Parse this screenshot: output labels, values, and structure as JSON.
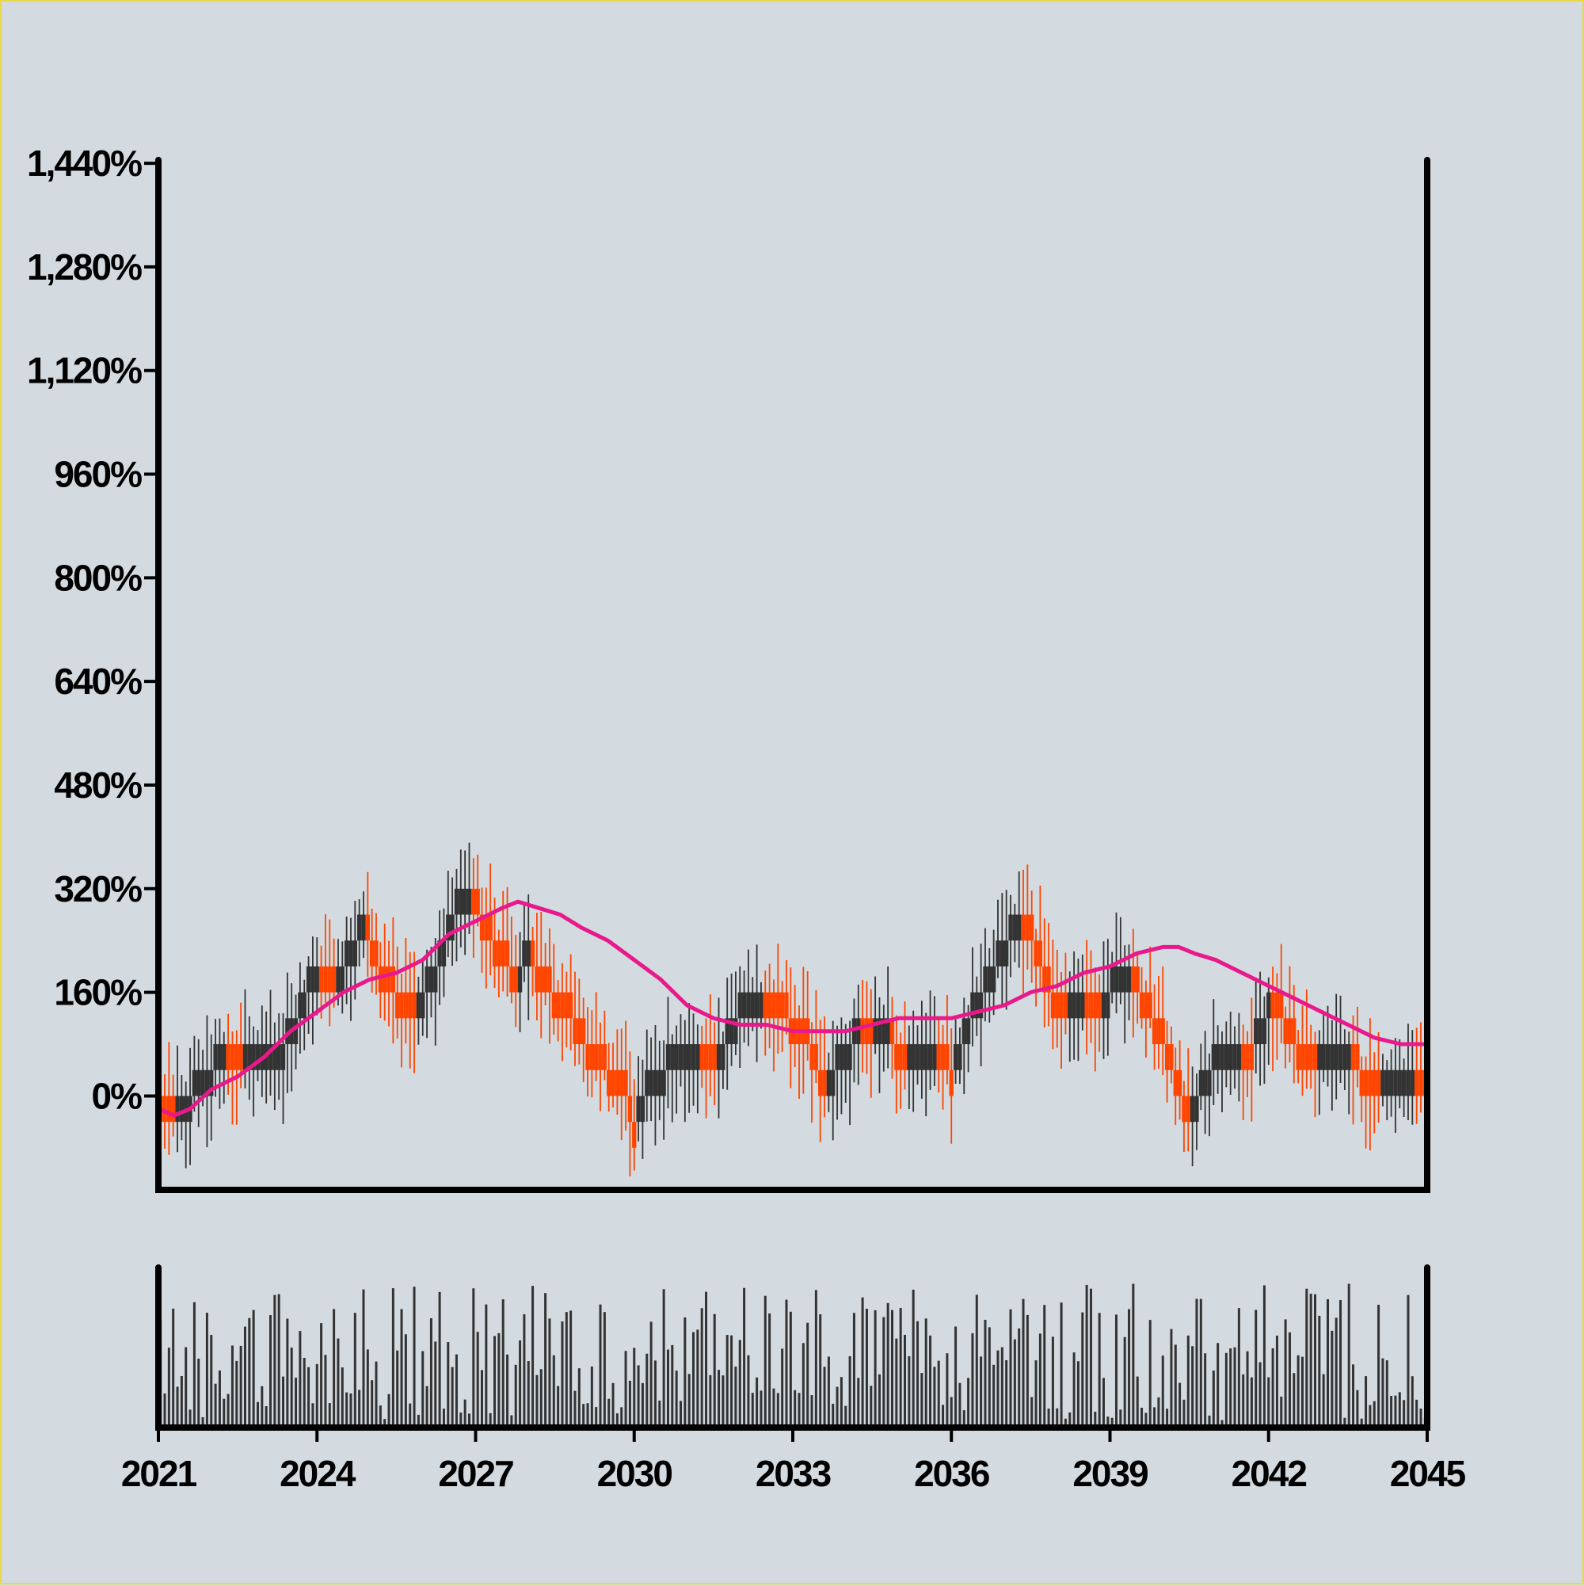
{
  "chart_data": [
    {
      "type": "candlestick",
      "title": "",
      "xlabel": "",
      "ylabel": "",
      "x_ticks": [
        "2021",
        "2024",
        "2027",
        "2030",
        "2033",
        "2036",
        "2039",
        "2042",
        "2045"
      ],
      "x_range": [
        2021,
        2045
      ],
      "y_ticks": [
        "0%",
        "160%",
        "320%",
        "480%",
        "640%",
        "800%",
        "960%",
        "1,120%",
        "1,280%",
        "1,440%"
      ],
      "y_tick_values": [
        0,
        160,
        320,
        480,
        640,
        800,
        960,
        1120,
        1280,
        1440
      ],
      "ylim": [
        -145,
        1445
      ],
      "up_color": "#333333",
      "down_color": "#ff4500",
      "series": [
        {
          "kind": "close_trend",
          "x": [
            2021.0,
            2021.3,
            2021.5,
            2021.8,
            2022.2,
            2022.6,
            2023.0,
            2023.4,
            2023.7,
            2024.0,
            2024.3,
            2024.6,
            2024.9,
            2025.2,
            2025.6,
            2025.9,
            2026.2,
            2026.4,
            2026.6,
            2026.9,
            2027.2,
            2027.5,
            2027.8,
            2028.0,
            2028.3,
            2028.6,
            2028.9,
            2029.2,
            2029.5,
            2029.8,
            2030.0,
            2030.3,
            2030.6,
            2030.9,
            2031.2,
            2031.5,
            2031.8,
            2032.1,
            2032.4,
            2032.7,
            2033.0,
            2033.3,
            2033.6,
            2033.9,
            2034.2,
            2034.5,
            2034.8,
            2035.1,
            2035.4,
            2035.7,
            2036.0,
            2036.3,
            2036.6,
            2036.9,
            2037.1,
            2037.3,
            2037.6,
            2037.9,
            2038.2,
            2038.5,
            2038.8,
            2039.1,
            2039.4,
            2039.7,
            2040.0,
            2040.2,
            2040.5,
            2040.8,
            2041.1,
            2041.4,
            2041.7,
            2042.0,
            2042.3,
            2042.6,
            2042.9,
            2043.2,
            2043.5,
            2043.8,
            2044.1,
            2044.4,
            2044.7,
            2045.0
          ],
          "y": [
            -10,
            -30,
            -20,
            20,
            60,
            40,
            60,
            80,
            130,
            200,
            180,
            210,
            270,
            200,
            150,
            140,
            180,
            230,
            280,
            320,
            260,
            210,
            190,
            220,
            180,
            140,
            110,
            60,
            40,
            10,
            -40,
            10,
            40,
            50,
            80,
            60,
            90,
            150,
            160,
            140,
            110,
            80,
            10,
            60,
            90,
            80,
            100,
            60,
            70,
            80,
            40,
            100,
            160,
            210,
            240,
            270,
            230,
            150,
            120,
            160,
            140,
            170,
            190,
            140,
            90,
            40,
            -40,
            30,
            60,
            80,
            70,
            130,
            120,
            60,
            40,
            50,
            60,
            30,
            10,
            20,
            40,
            0
          ]
        },
        {
          "kind": "moving_average",
          "color": "#e8198b",
          "x": [
            2021.0,
            2021.3,
            2021.6,
            2022.0,
            2022.5,
            2023.0,
            2023.5,
            2024.0,
            2024.5,
            2025.0,
            2025.5,
            2026.0,
            2026.5,
            2027.0,
            2027.5,
            2027.8,
            2028.2,
            2028.6,
            2029.0,
            2029.5,
            2030.0,
            2030.5,
            2031.0,
            2031.5,
            2032.0,
            2032.5,
            2033.0,
            2033.5,
            2034.0,
            2034.5,
            2035.0,
            2035.5,
            2036.0,
            2036.5,
            2037.0,
            2037.5,
            2038.0,
            2038.5,
            2039.0,
            2039.5,
            2040.0,
            2040.3,
            2040.6,
            2041.0,
            2041.5,
            2042.0,
            2042.5,
            2043.0,
            2043.5,
            2044.0,
            2044.5,
            2045.0
          ],
          "y": [
            -20,
            -30,
            -20,
            10,
            30,
            60,
            100,
            130,
            160,
            180,
            190,
            210,
            250,
            270,
            290,
            300,
            290,
            280,
            260,
            240,
            210,
            180,
            140,
            120,
            110,
            110,
            100,
            100,
            100,
            110,
            120,
            120,
            120,
            130,
            140,
            160,
            170,
            190,
            200,
            220,
            230,
            230,
            220,
            210,
            190,
            170,
            150,
            130,
            110,
            90,
            80,
            80
          ]
        }
      ],
      "volume": {
        "color": "#333333",
        "count": 300
      }
    }
  ]
}
